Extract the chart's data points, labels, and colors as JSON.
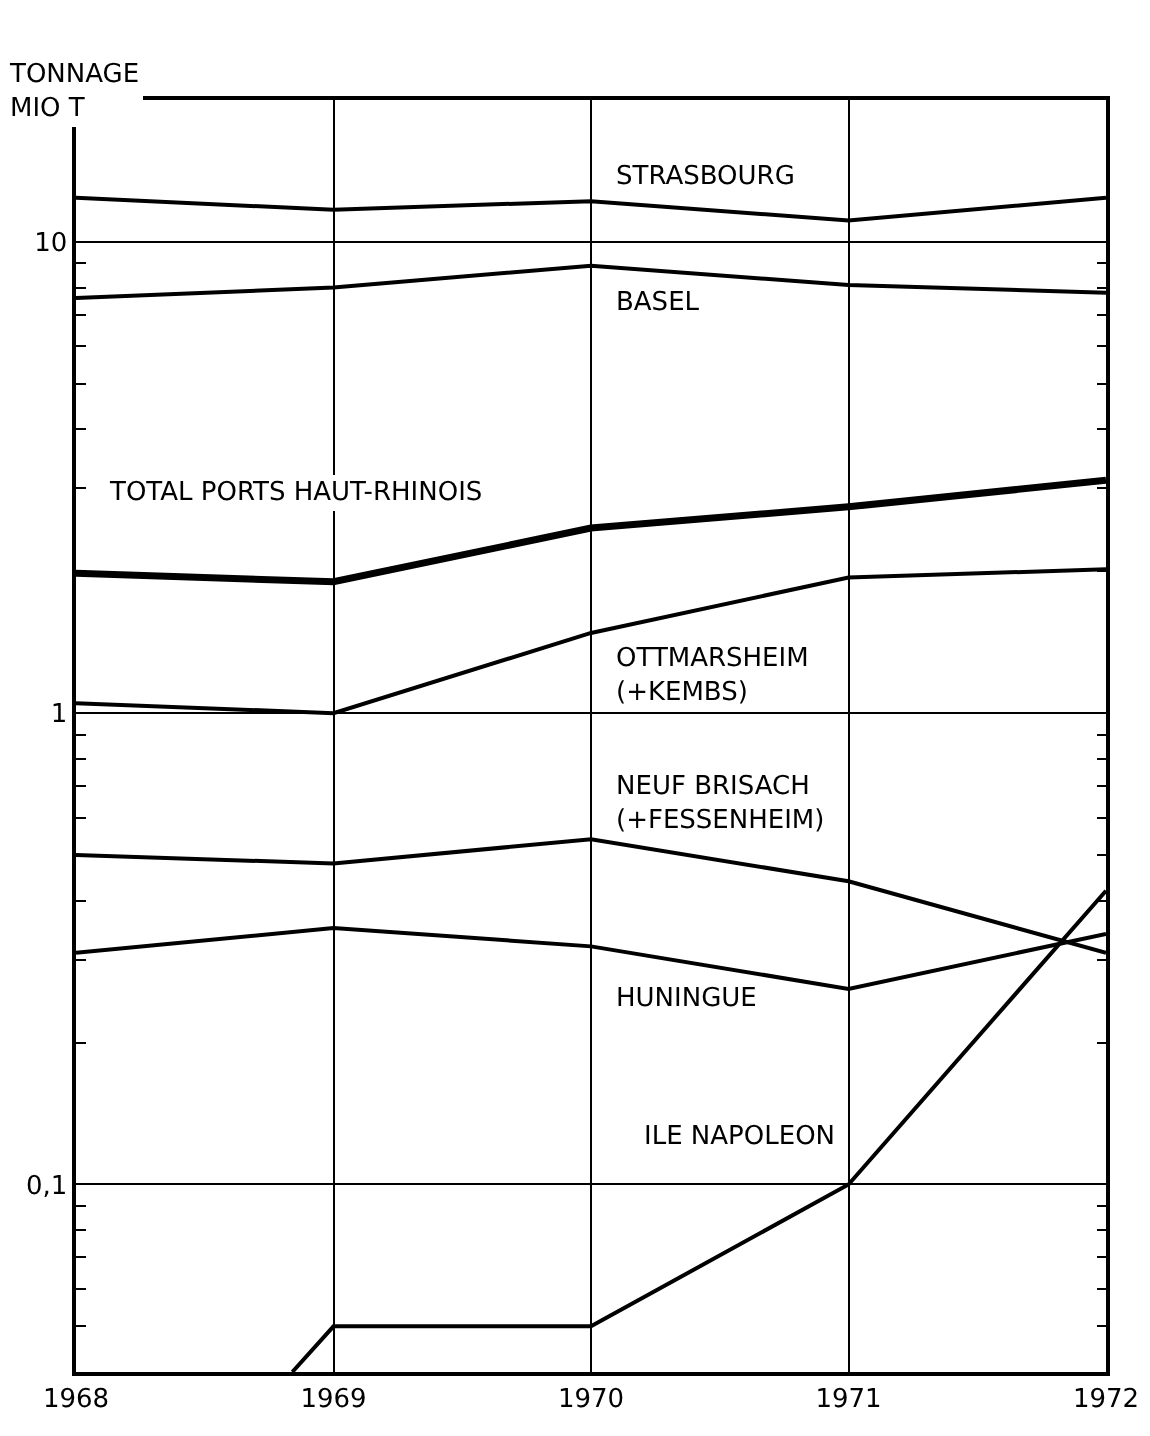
{
  "chart_data": {
    "type": "line",
    "ylabel": "TONNAGE\nMIO T",
    "log": true,
    "grid": true,
    "legend": false,
    "marker": "none",
    "line_style": "solid",
    "x": [
      1968,
      1969,
      1970,
      1971,
      1972
    ],
    "xlim": [
      1968,
      1972
    ],
    "xticks": [
      1968,
      1969,
      1970,
      1971,
      1972
    ],
    "ylim": [
      0.04,
      20
    ],
    "yticks": [
      {
        "value": 0.04,
        "label": null
      },
      {
        "value": 0.05,
        "label": null
      },
      {
        "value": 0.06,
        "label": null
      },
      {
        "value": 0.07,
        "label": null
      },
      {
        "value": 0.08,
        "label": null
      },
      {
        "value": 0.09,
        "label": null
      },
      {
        "value": 0.1,
        "label": "0,1"
      },
      {
        "value": 0.2,
        "label": null
      },
      {
        "value": 0.3,
        "label": null
      },
      {
        "value": 0.4,
        "label": null
      },
      {
        "value": 0.5,
        "label": null
      },
      {
        "value": 0.6,
        "label": null
      },
      {
        "value": 0.7,
        "label": null
      },
      {
        "value": 0.8,
        "label": null
      },
      {
        "value": 0.9,
        "label": null
      },
      1,
      {
        "value": 2,
        "label": null
      },
      {
        "value": 3,
        "label": null
      },
      {
        "value": 4,
        "label": null
      },
      {
        "value": 5,
        "label": null
      },
      {
        "value": 6,
        "label": null
      },
      {
        "value": 7,
        "label": null
      },
      {
        "value": 8,
        "label": null
      },
      {
        "value": 9,
        "label": null
      },
      10,
      {
        "value": 20,
        "label": null
      }
    ],
    "series": [
      {
        "name": "STRASBOURG",
        "color": "#000000",
        "values": [
          12.4,
          11.7,
          12.2,
          11.1,
          12.4
        ]
      },
      {
        "name": "BASEL",
        "color": "#000000",
        "values": [
          7.6,
          8.0,
          8.9,
          8.1,
          7.8
        ]
      },
      {
        "name": "TOTAL PORTS HAUT-RHINOIS",
        "color": "#000000",
        "values": [
          1.98,
          1.9,
          2.47,
          2.74,
          3.12
        ]
      },
      {
        "name": "OTTMARSHEIM\n(+KEMBS)",
        "color": "#000000",
        "values": [
          1.05,
          1.0,
          1.48,
          1.94,
          2.02
        ]
      },
      {
        "name": "NEUF BRISACH\n(+FESSENHEIM)",
        "color": "#000000",
        "values": [
          0.5,
          0.48,
          0.54,
          0.44,
          0.31
        ]
      },
      {
        "name": "HUNINGUE",
        "color": "#000000",
        "values": [
          0.31,
          0.35,
          0.32,
          0.26,
          0.34
        ]
      },
      {
        "name": "ILE NAPOLEON",
        "color": "#000000",
        "x": [
          1968.84,
          1969,
          1970,
          1971,
          1972
        ],
        "values": [
          0.04,
          0.05,
          0.05,
          0.1,
          0.42
        ]
      }
    ]
  }
}
